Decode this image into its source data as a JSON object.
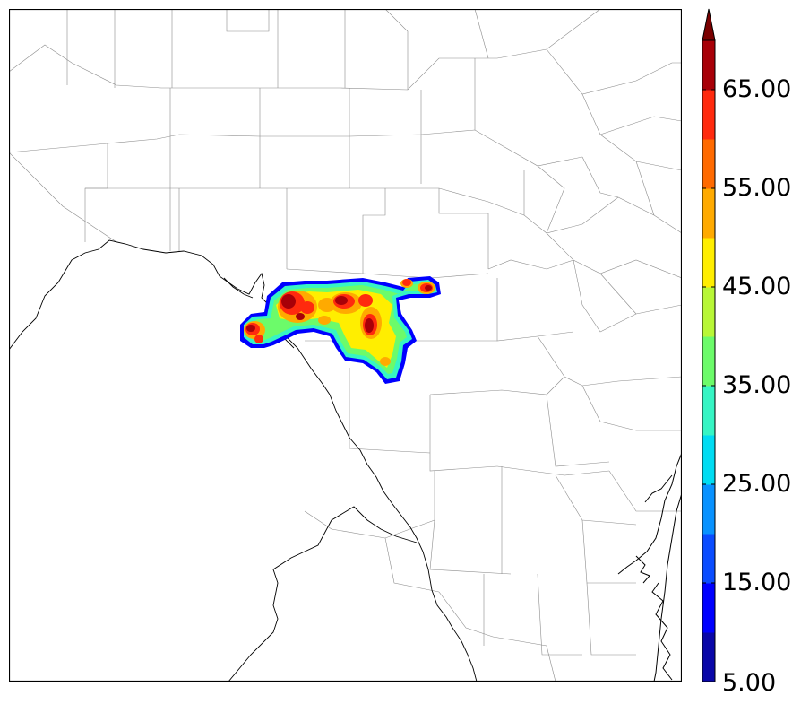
{
  "colorbar": {
    "tick_labels": [
      "5.00",
      "15.00",
      "25.00",
      "35.00",
      "45.00",
      "55.00",
      "65.00"
    ],
    "colors": [
      "#0a07a8",
      "#0000ff",
      "#0a4cff",
      "#0892ff",
      "#00dcf2",
      "#36f5c4",
      "#6cfb6a",
      "#b8f736",
      "#ffee00",
      "#ffaa00",
      "#ff6a00",
      "#ff2a0e",
      "#a80008",
      "#7a0000"
    ],
    "extend": "max"
  },
  "map": {
    "field_colors": {
      "low": "#0000ff",
      "mid": "#36f5c4",
      "green": "#6cfb6a",
      "yellow": "#ffee00",
      "orange": "#ffaa00",
      "red": "#ff2a0e",
      "darkred": "#a80008"
    }
  }
}
